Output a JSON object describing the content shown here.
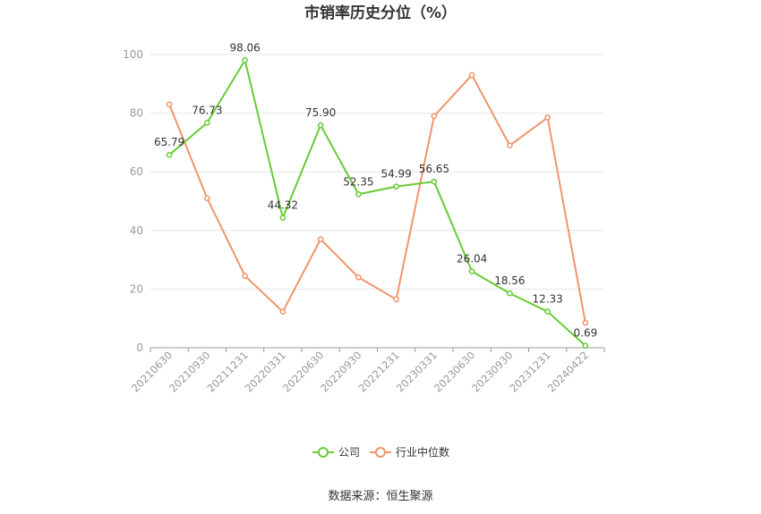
{
  "chart_data": {
    "type": "line",
    "title": "市销率历史分位（%）",
    "x": [
      "20210630",
      "20210930",
      "20211231",
      "20220331",
      "20220630",
      "20220930",
      "20221231",
      "20230331",
      "20230630",
      "20230930",
      "20231231",
      "20240422"
    ],
    "ylim": [
      0,
      100
    ],
    "yticks": [
      0,
      20,
      40,
      60,
      80,
      100
    ],
    "grid": true,
    "legend_position": "bottom",
    "series": [
      {
        "name": "公司",
        "color": "#66cc33",
        "values": [
          65.79,
          76.73,
          98.06,
          44.32,
          75.9,
          52.35,
          54.99,
          56.65,
          26.04,
          18.56,
          12.33,
          0.69
        ],
        "labels": [
          "65.79",
          "76.73",
          "98.06",
          "44.32",
          "75.90",
          "52.35",
          "54.99",
          "56.65",
          "26.04",
          "18.56",
          "12.33",
          "0.69"
        ]
      },
      {
        "name": "行业中位数",
        "color": "#f0956a",
        "values": [
          83.0,
          51.0,
          24.5,
          12.3,
          37.0,
          24.0,
          16.5,
          79.0,
          93.0,
          69.0,
          78.5,
          8.5
        ]
      }
    ]
  },
  "source_text": "数据来源：恒生聚源"
}
